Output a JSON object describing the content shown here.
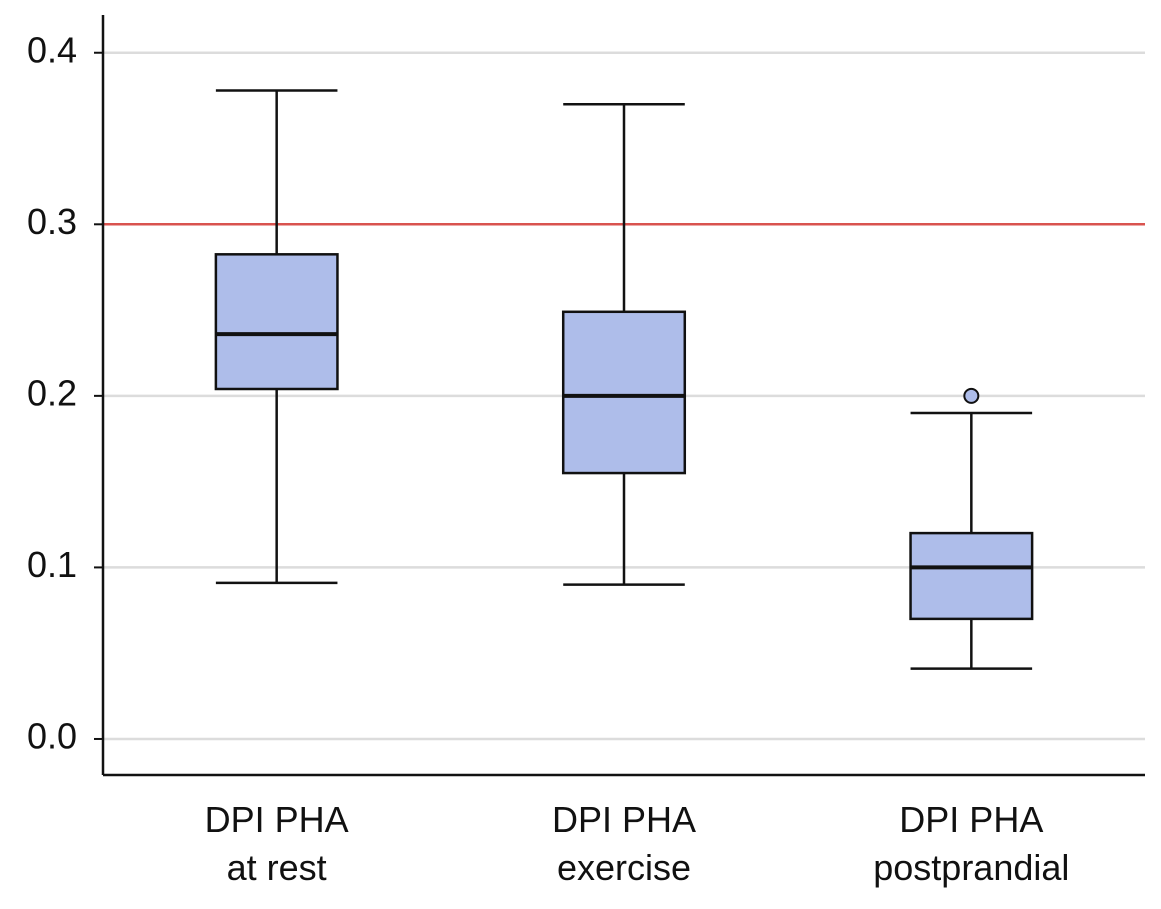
{
  "chart_data": {
    "type": "box",
    "categories": [
      "DPI PHA\nat rest",
      "DPI PHA\nexercise",
      "DPI PHA\npostprandial"
    ],
    "boxes": [
      {
        "whisker_low": 0.091,
        "q1": 0.204,
        "median": 0.236,
        "q3": 0.2825,
        "whisker_high": 0.378,
        "outliers": []
      },
      {
        "whisker_low": 0.09,
        "q1": 0.155,
        "median": 0.2,
        "q3": 0.249,
        "whisker_high": 0.37,
        "outliers": []
      },
      {
        "whisker_low": 0.041,
        "q1": 0.07,
        "median": 0.1,
        "q3": 0.12,
        "whisker_high": 0.19,
        "outliers": [
          0.2
        ]
      }
    ],
    "color": "#aebdea",
    "reference_line": {
      "value": 0.3,
      "color": "#d9534f"
    },
    "ylim": [
      -0.021,
      0.422
    ],
    "yticks": [
      {
        "value": 0,
        "label": "0.0"
      },
      0.1,
      0.2,
      0.3,
      0.4
    ],
    "grid": true
  }
}
